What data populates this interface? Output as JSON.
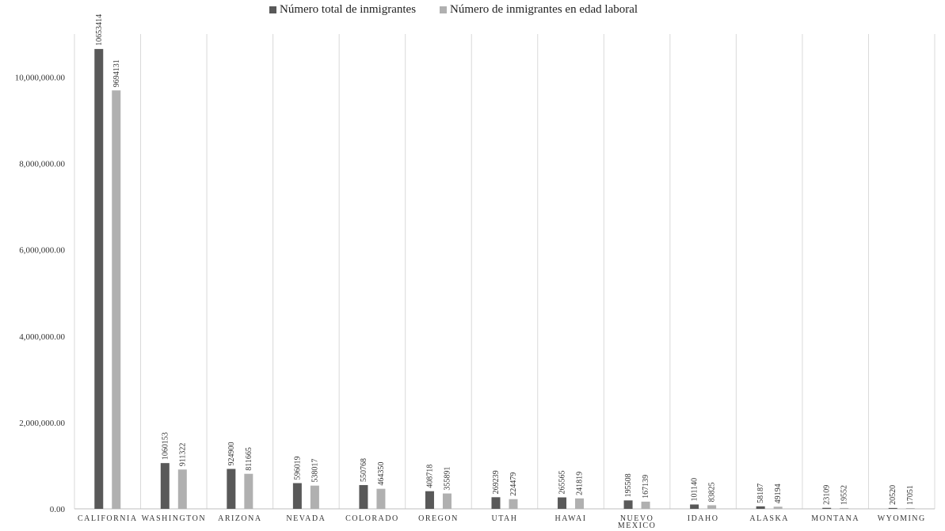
{
  "chart_data": {
    "type": "bar",
    "title": "",
    "xlabel": "",
    "ylabel": "",
    "ylim": [
      0,
      11000000
    ],
    "yticks": [
      0,
      2000000,
      4000000,
      6000000,
      8000000,
      10000000
    ],
    "ytick_labels": [
      "0.00",
      "2,000,000.00",
      "4,000,000.00",
      "6,000,000.00",
      "8,000,000.00",
      "10,000,000.00"
    ],
    "grid": "vertical separators",
    "legend_position": "top",
    "categories": [
      [
        "CALIFORNIA"
      ],
      [
        "WASHINGTON"
      ],
      [
        "ARIZONA"
      ],
      [
        "NEVADA"
      ],
      [
        "COLORADO"
      ],
      [
        "OREGON"
      ],
      [
        "UTAH"
      ],
      [
        "HAWAI"
      ],
      [
        "NUEVO",
        "MEXICO"
      ],
      [
        "IDAHO"
      ],
      [
        "ALASKA"
      ],
      [
        "MONTANA"
      ],
      [
        "WYOMING"
      ]
    ],
    "series": [
      {
        "name": "Número total de inmigrantes",
        "color": "#595959",
        "values": [
          10653414,
          1060153,
          924900,
          596019,
          550768,
          408718,
          269239,
          265565,
          195508,
          101140,
          58187,
          23109,
          20520
        ]
      },
      {
        "name": "Número de inmigrantes en edad laboral",
        "color": "#b0b0b0",
        "values": [
          9694131,
          911322,
          811665,
          538017,
          464350,
          355891,
          224479,
          241819,
          167139,
          83825,
          49194,
          19552,
          17051
        ]
      }
    ]
  }
}
